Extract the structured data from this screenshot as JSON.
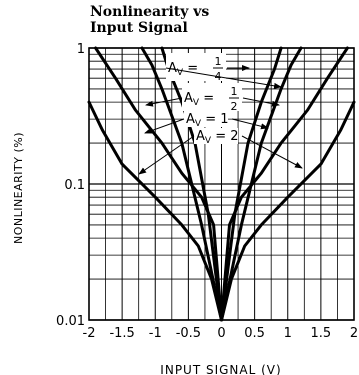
{
  "chart_data": {
    "type": "line",
    "title_line1": "Nonlinearity vs",
    "title_line2": "Input Signal",
    "xlabel": "INPUT SIGNAL (V)",
    "ylabel": "NONLINEARITY (%)",
    "xlim": [
      -2,
      2
    ],
    "ylim": [
      0.01,
      1
    ],
    "yscale": "log",
    "grid": true,
    "x_ticks": [
      "-2",
      "-1.5",
      "-1",
      "-0.5",
      "0",
      "0.5",
      "1",
      "1.5",
      "2"
    ],
    "y_ticks": [
      "0.01",
      "0.1",
      "1"
    ],
    "series": [
      {
        "name": "AV = 1/4",
        "x": [
          0,
          0.3,
          0.6,
          0.9,
          1.05,
          1.2
        ],
        "y": [
          0.01,
          0.05,
          0.2,
          0.5,
          0.75,
          1.0
        ],
        "symmetric": true
      },
      {
        "name": "AV = 1/2",
        "x": [
          0,
          0.2,
          0.4,
          0.6,
          0.8,
          0.9
        ],
        "y": [
          0.01,
          0.06,
          0.2,
          0.4,
          0.7,
          1.0
        ],
        "symmetric": true
      },
      {
        "name": "AV = 1",
        "x": [
          0,
          0.12,
          0.3,
          0.6,
          0.9,
          1.3,
          1.6,
          1.9
        ],
        "y": [
          0.01,
          0.05,
          0.08,
          0.12,
          0.2,
          0.35,
          0.6,
          1.0
        ],
        "symmetric": true
      },
      {
        "name": "AV = 2",
        "x": [
          0,
          0.15,
          0.35,
          0.6,
          1.0,
          1.5,
          1.8,
          2.0
        ],
        "y": [
          0.01,
          0.02,
          0.035,
          0.05,
          0.08,
          0.14,
          0.25,
          0.4
        ],
        "symmetric": true
      }
    ],
    "annotations": [
      {
        "prefix": "A",
        "sub": "V",
        "eq": " = ",
        "num": "1",
        "den": "4"
      },
      {
        "prefix": "A",
        "sub": "V",
        "eq": " = ",
        "num": "1",
        "den": "2"
      },
      {
        "prefix": "A",
        "sub": "V",
        "eq": " = ",
        "val": "1"
      },
      {
        "prefix": "A",
        "sub": "V",
        "eq": " = ",
        "val": "2"
      }
    ]
  }
}
